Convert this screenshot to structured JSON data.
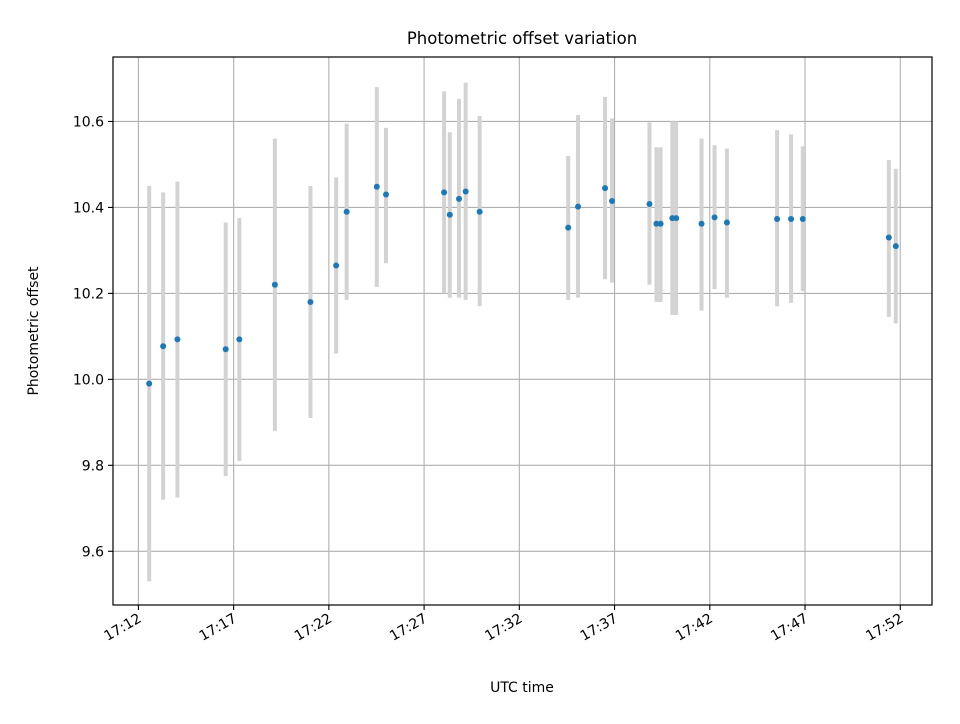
{
  "chart_data": {
    "type": "scatter",
    "title": "Photometric offset variation",
    "xlabel": "UTC time",
    "ylabel": "Photometric offset",
    "x_is_time": true,
    "xlim": [
      "17:10:40",
      "17:53:40"
    ],
    "ylim": [
      9.475,
      10.75
    ],
    "x_ticks": [
      "17:12",
      "17:17",
      "17:22",
      "17:27",
      "17:32",
      "17:37",
      "17:42",
      "17:47",
      "17:52"
    ],
    "y_ticks": [
      9.6,
      9.8,
      10.0,
      10.2,
      10.4,
      10.6
    ],
    "y_tick_labels": [
      "9.6",
      "9.8",
      "10.0",
      "10.2",
      "10.4",
      "10.6"
    ],
    "grid": true,
    "marker_color": "#1f77b4",
    "errorbar_color": "#d3d3d3",
    "points": [
      {
        "t": "17:12:34",
        "y": 9.99,
        "ylo": 9.53,
        "yhi": 10.45
      },
      {
        "t": "17:13:18",
        "y": 10.077,
        "ylo": 9.72,
        "yhi": 10.435
      },
      {
        "t": "17:14:03",
        "y": 10.093,
        "ylo": 9.725,
        "yhi": 10.46
      },
      {
        "t": "17:16:35",
        "y": 10.07,
        "ylo": 9.775,
        "yhi": 10.365
      },
      {
        "t": "17:17:18",
        "y": 10.093,
        "ylo": 9.81,
        "yhi": 10.375
      },
      {
        "t": "17:19:10",
        "y": 10.22,
        "ylo": 9.88,
        "yhi": 10.56
      },
      {
        "t": "17:21:02",
        "y": 10.18,
        "ylo": 9.91,
        "yhi": 10.45
      },
      {
        "t": "17:22:23",
        "y": 10.265,
        "ylo": 10.06,
        "yhi": 10.47
      },
      {
        "t": "17:22:56",
        "y": 10.39,
        "ylo": 10.185,
        "yhi": 10.595
      },
      {
        "t": "17:24:31",
        "y": 10.448,
        "ylo": 10.215,
        "yhi": 10.68
      },
      {
        "t": "17:25:00",
        "y": 10.43,
        "ylo": 10.27,
        "yhi": 10.585
      },
      {
        "t": "17:28:03",
        "y": 10.435,
        "ylo": 10.2,
        "yhi": 10.67
      },
      {
        "t": "17:28:21",
        "y": 10.383,
        "ylo": 10.19,
        "yhi": 10.575
      },
      {
        "t": "17:28:50",
        "y": 10.42,
        "ylo": 10.19,
        "yhi": 10.653
      },
      {
        "t": "17:29:11",
        "y": 10.437,
        "ylo": 10.185,
        "yhi": 10.69
      },
      {
        "t": "17:29:55",
        "y": 10.39,
        "ylo": 10.17,
        "yhi": 10.613
      },
      {
        "t": "17:34:34",
        "y": 10.353,
        "ylo": 10.185,
        "yhi": 10.52
      },
      {
        "t": "17:35:05",
        "y": 10.402,
        "ylo": 10.19,
        "yhi": 10.615
      },
      {
        "t": "17:36:30",
        "y": 10.445,
        "ylo": 10.233,
        "yhi": 10.657
      },
      {
        "t": "17:36:52",
        "y": 10.415,
        "ylo": 10.225,
        "yhi": 10.607
      },
      {
        "t": "17:38:50",
        "y": 10.408,
        "ylo": 10.22,
        "yhi": 10.598
      },
      {
        "t": "17:39:12",
        "y": 10.362,
        "ylo": 10.18,
        "yhi": 10.54
      },
      {
        "t": "17:39:25",
        "y": 10.362,
        "ylo": 10.18,
        "yhi": 10.54
      },
      {
        "t": "17:40:02",
        "y": 10.375,
        "ylo": 10.15,
        "yhi": 10.6
      },
      {
        "t": "17:40:14",
        "y": 10.375,
        "ylo": 10.15,
        "yhi": 10.6
      },
      {
        "t": "17:41:34",
        "y": 10.362,
        "ylo": 10.16,
        "yhi": 10.56
      },
      {
        "t": "17:42:15",
        "y": 10.377,
        "ylo": 10.21,
        "yhi": 10.545
      },
      {
        "t": "17:42:54",
        "y": 10.365,
        "ylo": 10.19,
        "yhi": 10.537
      },
      {
        "t": "17:45:32",
        "y": 10.373,
        "ylo": 10.17,
        "yhi": 10.58
      },
      {
        "t": "17:46:16",
        "y": 10.373,
        "ylo": 10.178,
        "yhi": 10.57
      },
      {
        "t": "17:46:53",
        "y": 10.373,
        "ylo": 10.205,
        "yhi": 10.542
      },
      {
        "t": "17:51:24",
        "y": 10.33,
        "ylo": 10.145,
        "yhi": 10.51
      },
      {
        "t": "17:51:46",
        "y": 10.31,
        "ylo": 10.13,
        "yhi": 10.49
      }
    ]
  }
}
